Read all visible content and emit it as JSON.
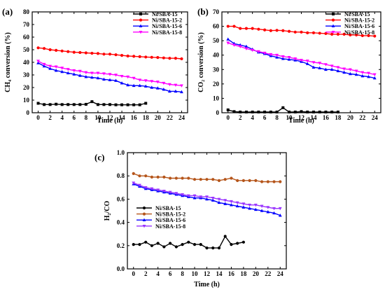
{
  "chart_data": [
    {
      "type": "line",
      "panel_label": "(a)",
      "xlabel": "Time (h)",
      "ylabel": "CH₄ conversion (%)",
      "xlim": [
        -1,
        25
      ],
      "ylim": [
        0,
        80
      ],
      "xticks": [
        0,
        2,
        4,
        6,
        8,
        10,
        12,
        14,
        16,
        18,
        20,
        22,
        24
      ],
      "yticks": [
        0,
        10,
        20,
        30,
        40,
        50,
        60,
        70,
        80
      ],
      "legend_position": "top-right",
      "series": [
        {
          "name": "Ni/SBA-15",
          "color": "#000000",
          "marker": "square",
          "x": [
            0,
            1,
            2,
            3,
            4,
            5,
            6,
            7,
            8,
            9,
            10,
            11,
            12,
            13,
            14,
            15,
            16,
            17,
            18
          ],
          "y": [
            7.5,
            6.5,
            6.5,
            6.8,
            6.5,
            6.5,
            6.5,
            6.5,
            6.7,
            8.8,
            6.5,
            6.5,
            6.5,
            6.3,
            6.3,
            6.3,
            6.3,
            6.3,
            7.5
          ]
        },
        {
          "name": "Ni/SBA-15-2",
          "color": "#ff0000",
          "marker": "circle",
          "x": [
            0,
            1,
            2,
            3,
            4,
            5,
            6,
            7,
            8,
            9,
            10,
            11,
            12,
            13,
            14,
            15,
            16,
            17,
            18,
            19,
            20,
            21,
            22,
            23,
            24
          ],
          "y": [
            51.5,
            51,
            50,
            49.5,
            49,
            48.5,
            48,
            47.8,
            47.5,
            47.2,
            47,
            46.5,
            46.5,
            46,
            45.5,
            45,
            44.8,
            44.5,
            44.2,
            44,
            43.8,
            43.5,
            43.2,
            43.2,
            42.8
          ]
        },
        {
          "name": "Ni/SBA-15-6",
          "color": "#0000ff",
          "marker": "triangle",
          "x": [
            0,
            1,
            2,
            3,
            4,
            5,
            6,
            7,
            8,
            9,
            10,
            11,
            12,
            13,
            14,
            15,
            16,
            17,
            18,
            19,
            20,
            21,
            22,
            23,
            24
          ],
          "y": [
            39.5,
            37,
            35,
            33.5,
            32.5,
            31.5,
            30.5,
            29.5,
            28.5,
            28,
            27.5,
            26.5,
            26,
            25.5,
            23.5,
            22,
            21.5,
            21.5,
            21,
            20,
            19.5,
            18.5,
            17,
            17,
            16.5
          ]
        },
        {
          "name": "Ni/SBA-15-8",
          "color": "#ff00ff",
          "marker": "triangle-down",
          "x": [
            0,
            1,
            2,
            3,
            4,
            5,
            6,
            7,
            8,
            9,
            10,
            11,
            12,
            13,
            14,
            15,
            16,
            17,
            18,
            19,
            20,
            21,
            22,
            23,
            24
          ],
          "y": [
            41,
            38.5,
            37,
            36.5,
            35.5,
            34.5,
            33.5,
            33,
            32,
            31.5,
            31.5,
            31,
            30.5,
            30,
            29,
            28.5,
            27.5,
            26,
            25.5,
            25,
            24.5,
            23.5,
            22.5,
            22,
            21.5
          ]
        }
      ]
    },
    {
      "type": "line",
      "panel_label": "(b)",
      "xlabel": "Time (h)",
      "ylabel": "CO₂ conversion (%)",
      "xlim": [
        -1,
        25
      ],
      "ylim": [
        0,
        70
      ],
      "xticks": [
        0,
        2,
        4,
        6,
        8,
        10,
        12,
        14,
        16,
        18,
        20,
        22,
        24
      ],
      "yticks": [
        0,
        10,
        20,
        30,
        40,
        50,
        60,
        70
      ],
      "legend_position": "top-right",
      "series": [
        {
          "name": "Ni/SBA-15",
          "color": "#000000",
          "marker": "square",
          "x": [
            0,
            1,
            2,
            3,
            4,
            5,
            6,
            7,
            8,
            9,
            10,
            11,
            12,
            13,
            14,
            15,
            16,
            17,
            18
          ],
          "y": [
            2,
            0.8,
            0.5,
            0.5,
            0.5,
            0.5,
            0.5,
            0.5,
            0.5,
            3.5,
            0.5,
            0.5,
            0.8,
            0.5,
            0.5,
            0.5,
            0.5,
            0.5,
            0.5
          ]
        },
        {
          "name": "Ni/SBA-15-2",
          "color": "#ff0000",
          "marker": "circle",
          "x": [
            0,
            1,
            2,
            3,
            4,
            5,
            6,
            7,
            8,
            9,
            10,
            11,
            12,
            13,
            14,
            15,
            16,
            17,
            18,
            19,
            20,
            21,
            22,
            23,
            24
          ],
          "y": [
            60,
            60,
            58.5,
            58.5,
            58.5,
            58,
            57.5,
            57,
            57.2,
            57,
            56.5,
            56,
            56,
            55.5,
            55.5,
            55.2,
            55,
            54.5,
            54.5,
            54.5,
            54,
            54,
            53.5,
            53.5,
            53.2
          ]
        },
        {
          "name": "Ni/SBA-15-6",
          "color": "#0000ff",
          "marker": "triangle",
          "x": [
            0,
            1,
            2,
            3,
            4,
            5,
            6,
            7,
            8,
            9,
            10,
            11,
            12,
            13,
            14,
            15,
            16,
            17,
            18,
            19,
            20,
            21,
            22,
            23,
            24
          ],
          "y": [
            51,
            48,
            47,
            46,
            44,
            42,
            41,
            39.5,
            38.5,
            37.5,
            37,
            36.5,
            35.5,
            34,
            31.5,
            31,
            30,
            30,
            29,
            28,
            27,
            26.5,
            25.5,
            25,
            24
          ]
        },
        {
          "name": "Ni/SBA-15-8",
          "color": "#ff00ff",
          "marker": "triangle-down",
          "x": [
            0,
            1,
            2,
            3,
            4,
            5,
            6,
            7,
            8,
            9,
            10,
            11,
            12,
            13,
            14,
            15,
            16,
            17,
            18,
            19,
            20,
            21,
            22,
            23,
            24
          ],
          "y": [
            48.5,
            47,
            46,
            44.5,
            43.5,
            42.5,
            41.5,
            40.5,
            40,
            39,
            38.5,
            37.5,
            36.5,
            36,
            35,
            34.5,
            33.5,
            32.5,
            31.5,
            30.5,
            30,
            29,
            28,
            27.5,
            26.5
          ]
        }
      ]
    },
    {
      "type": "line",
      "panel_label": "(c)",
      "xlabel": "Time (h)",
      "ylabel": "H₂/CO",
      "xlim": [
        -1,
        25
      ],
      "ylim": [
        0,
        1.0
      ],
      "xticks": [
        0,
        2,
        4,
        6,
        8,
        10,
        12,
        14,
        16,
        18,
        20,
        22,
        24
      ],
      "yticks": [
        "0.0",
        "0.2",
        "0.4",
        "0.6",
        "0.8",
        "1.0"
      ],
      "legend_position": "bottom-left",
      "series": [
        {
          "name": "Ni/SBA-15",
          "color": "#000000",
          "marker": "circle",
          "x": [
            0,
            1,
            2,
            3,
            4,
            5,
            6,
            7,
            8,
            9,
            10,
            11,
            12,
            13,
            14,
            15,
            16,
            17,
            18
          ],
          "y": [
            0.21,
            0.21,
            0.23,
            0.2,
            0.22,
            0.19,
            0.22,
            0.19,
            0.21,
            0.23,
            0.21,
            0.21,
            0.18,
            0.18,
            0.18,
            0.28,
            0.21,
            0.22,
            0.23
          ]
        },
        {
          "name": "Ni/SBA-15-2",
          "color": "#b5551a",
          "marker": "circle",
          "x": [
            0,
            1,
            2,
            3,
            4,
            5,
            6,
            7,
            8,
            9,
            10,
            11,
            12,
            13,
            14,
            15,
            16,
            17,
            18,
            19,
            20,
            21,
            22,
            23,
            24
          ],
          "y": [
            0.82,
            0.8,
            0.8,
            0.79,
            0.79,
            0.79,
            0.78,
            0.78,
            0.78,
            0.78,
            0.77,
            0.77,
            0.77,
            0.77,
            0.76,
            0.77,
            0.78,
            0.76,
            0.76,
            0.76,
            0.76,
            0.75,
            0.75,
            0.75,
            0.75
          ]
        },
        {
          "name": "Ni/SBA-15-6",
          "color": "#0000ff",
          "marker": "triangle",
          "x": [
            0,
            1,
            2,
            3,
            4,
            5,
            6,
            7,
            8,
            9,
            10,
            11,
            12,
            13,
            14,
            15,
            16,
            17,
            18,
            19,
            20,
            21,
            22,
            23,
            24
          ],
          "y": [
            0.73,
            0.71,
            0.69,
            0.68,
            0.67,
            0.66,
            0.65,
            0.64,
            0.63,
            0.62,
            0.61,
            0.61,
            0.6,
            0.59,
            0.57,
            0.56,
            0.55,
            0.54,
            0.53,
            0.52,
            0.51,
            0.5,
            0.49,
            0.48,
            0.46
          ]
        },
        {
          "name": "Ni/SBA-15-8",
          "color": "#9933ff",
          "marker": "triangle-down",
          "x": [
            0,
            1,
            2,
            3,
            4,
            5,
            6,
            7,
            8,
            9,
            10,
            11,
            12,
            13,
            14,
            15,
            16,
            17,
            18,
            19,
            20,
            21,
            22,
            23,
            24
          ],
          "y": [
            0.74,
            0.72,
            0.7,
            0.69,
            0.68,
            0.67,
            0.66,
            0.65,
            0.64,
            0.63,
            0.63,
            0.62,
            0.62,
            0.61,
            0.6,
            0.59,
            0.58,
            0.57,
            0.56,
            0.55,
            0.55,
            0.54,
            0.53,
            0.52,
            0.52
          ]
        }
      ]
    }
  ]
}
